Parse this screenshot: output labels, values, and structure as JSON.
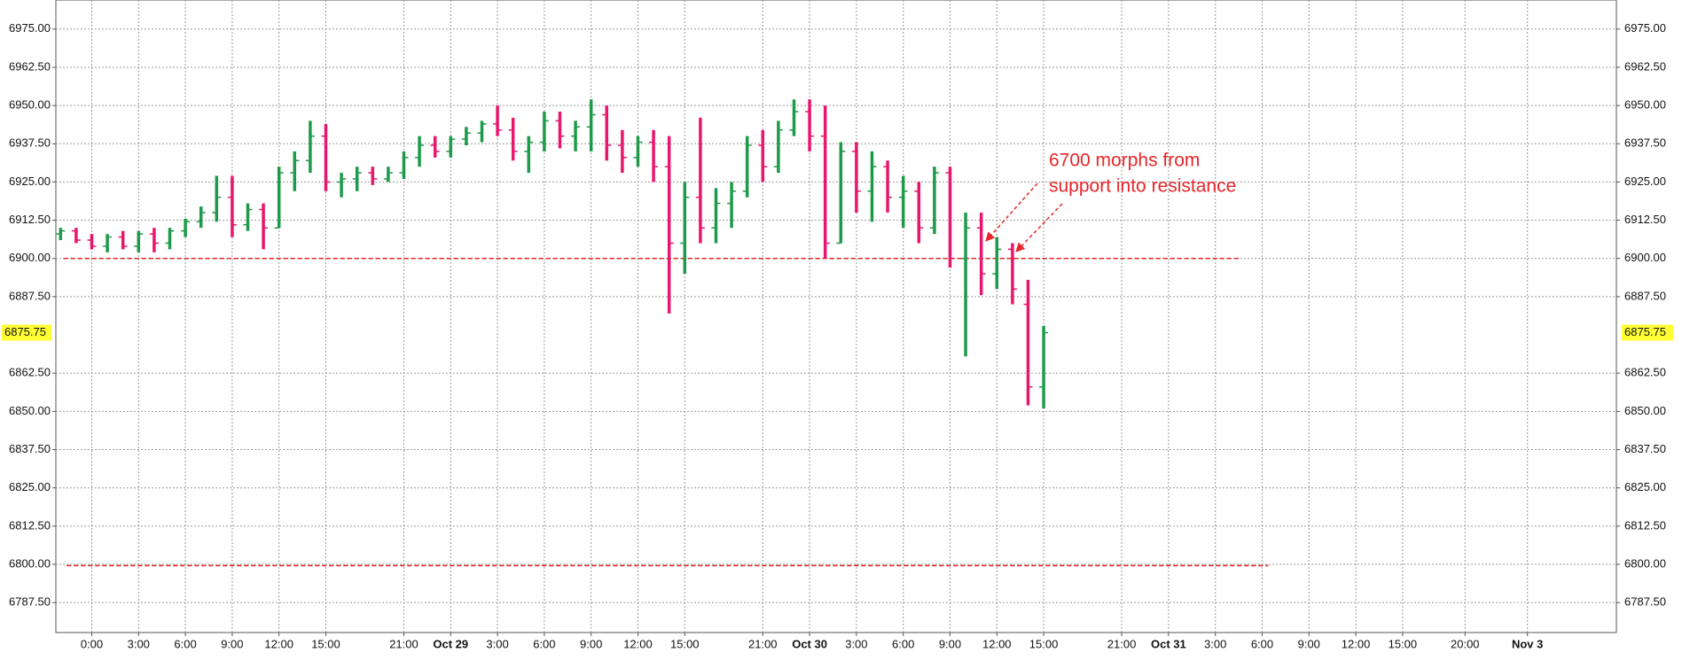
{
  "chart_data": {
    "type": "ohlc",
    "x": [
      -2,
      -1,
      0,
      1,
      2,
      3,
      4,
      5,
      6,
      7,
      8,
      9,
      10,
      11,
      12,
      13,
      14,
      15,
      16,
      17,
      18,
      19,
      20,
      21,
      22,
      23,
      24,
      25,
      26,
      27,
      28,
      29,
      30,
      31,
      32,
      33,
      34,
      35,
      36,
      37,
      38,
      39,
      40,
      41,
      42,
      43,
      44,
      45,
      46,
      47,
      48,
      49,
      50,
      51,
      52,
      53,
      54,
      55,
      56,
      57,
      58,
      59,
      60,
      61
    ],
    "open": [
      6908,
      6909,
      6906,
      6904,
      6907,
      6904,
      6908,
      6905,
      6909,
      6912,
      6915,
      6920,
      6911,
      6916,
      6910,
      6928,
      6932,
      6940,
      6925,
      6926,
      6928,
      6926,
      6928,
      6933,
      6937,
      6935,
      6939,
      6941,
      6944,
      6942,
      6935,
      6938,
      6945,
      6940,
      6943,
      6947,
      6937,
      6933,
      6938,
      6930,
      6905,
      6920,
      6910,
      6918,
      6922,
      6937,
      6930,
      6942,
      6948,
      6940,
      6905,
      6935,
      6922,
      6930,
      6920,
      6922,
      6910,
      6928,
      6900,
      6910,
      6895,
      6903,
      6885,
      6858
    ],
    "high": [
      6910,
      6910,
      6908,
      6908,
      6909,
      6909,
      6910,
      6910,
      6913,
      6917,
      6927,
      6927,
      6918,
      6918,
      6930,
      6935,
      6945,
      6944,
      6928,
      6930,
      6930,
      6930,
      6935,
      6940,
      6940,
      6940,
      6943,
      6945,
      6950,
      6946,
      6940,
      6948,
      6948,
      6945,
      6952,
      6950,
      6942,
      6940,
      6942,
      6940,
      6925,
      6946,
      6923,
      6925,
      6940,
      6942,
      6945,
      6952,
      6952,
      6950,
      6938,
      6938,
      6935,
      6932,
      6927,
      6925,
      6930,
      6930,
      6915,
      6915,
      6907,
      6905,
      6893,
      6878
    ],
    "low": [
      6906,
      6905,
      6903,
      6902,
      6903,
      6902,
      6902,
      6903,
      6907,
      6910,
      6912,
      6907,
      6909,
      6903,
      6910,
      6922,
      6928,
      6922,
      6920,
      6922,
      6924,
      6925,
      6926,
      6930,
      6933,
      6933,
      6937,
      6938,
      6940,
      6932,
      6928,
      6935,
      6936,
      6935,
      6935,
      6932,
      6928,
      6930,
      6925,
      6882,
      6895,
      6905,
      6905,
      6910,
      6920,
      6925,
      6928,
      6940,
      6935,
      6900,
      6905,
      6915,
      6912,
      6915,
      6910,
      6905,
      6908,
      6897,
      6868,
      6888,
      6890,
      6885,
      6852,
      6851
    ],
    "close": [
      6909,
      6906,
      6904,
      6907,
      6904,
      6908,
      6905,
      6909,
      6912,
      6915,
      6920,
      6911,
      6916,
      6910,
      6928,
      6932,
      6940,
      6925,
      6926,
      6928,
      6926,
      6928,
      6933,
      6937,
      6935,
      6939,
      6941,
      6944,
      6942,
      6935,
      6938,
      6945,
      6940,
      6943,
      6947,
      6937,
      6933,
      6938,
      6930,
      6905,
      6920,
      6910,
      6918,
      6922,
      6937,
      6930,
      6942,
      6948,
      6940,
      6905,
      6935,
      6922,
      6930,
      6920,
      6922,
      6910,
      6928,
      6900,
      6910,
      6895,
      6903,
      6890,
      6858,
      6875.75
    ],
    "up_color": "#1e9a4a",
    "down_color": "#e8176d",
    "xlim": [
      -2.3,
      97.7
    ],
    "xticks": [
      {
        "value": 0,
        "label": "0:00"
      },
      {
        "value": 3,
        "label": "3:00"
      },
      {
        "value": 6,
        "label": "6:00"
      },
      {
        "value": 9,
        "label": "9:00"
      },
      {
        "value": 12,
        "label": "12:00"
      },
      {
        "value": 15,
        "label": "15:00"
      },
      {
        "value": 20,
        "label": "21:00"
      },
      {
        "value": 23,
        "label": "Oct 29"
      },
      {
        "value": 26,
        "label": "3:00"
      },
      {
        "value": 29,
        "label": "6:00"
      },
      {
        "value": 32,
        "label": "9:00"
      },
      {
        "value": 35,
        "label": "12:00"
      },
      {
        "value": 38,
        "label": "15:00"
      },
      {
        "value": 43,
        "label": "21:00"
      },
      {
        "value": 46,
        "label": "Oct 30"
      },
      {
        "value": 49,
        "label": "3:00"
      },
      {
        "value": 52,
        "label": "6:00"
      },
      {
        "value": 55,
        "label": "9:00"
      },
      {
        "value": 58,
        "label": "12:00"
      },
      {
        "value": 61,
        "label": "15:00"
      },
      {
        "value": 66,
        "label": "21:00"
      },
      {
        "value": 69,
        "label": "Oct 31"
      },
      {
        "value": 72,
        "label": "3:00"
      },
      {
        "value": 75,
        "label": "6:00"
      },
      {
        "value": 78,
        "label": "9:00"
      },
      {
        "value": 81,
        "label": "12:00"
      },
      {
        "value": 84,
        "label": "15:00"
      },
      {
        "value": 88,
        "label": "20:00"
      },
      {
        "value": 92,
        "label": "Nov 3"
      }
    ],
    "ylim": [
      6777.7,
      6984.5
    ],
    "yticks": [
      {
        "value": 6975,
        "label": "6975.00"
      },
      {
        "value": 6962.5,
        "label": "6962.50"
      },
      {
        "value": 6950,
        "label": "6950.00"
      },
      {
        "value": 6937.5,
        "label": "6937.50"
      },
      {
        "value": 6925,
        "label": "6925.00"
      },
      {
        "value": 6912.5,
        "label": "6912.50"
      },
      {
        "value": 6900,
        "label": "6900.00"
      },
      {
        "value": 6887.5,
        "label": "6887.50"
      },
      {
        "value": 6862.5,
        "label": "6862.50"
      },
      {
        "value": 6850,
        "label": "6850.00"
      },
      {
        "value": 6837.5,
        "label": "6837.50"
      },
      {
        "value": 6825,
        "label": "6825.00"
      },
      {
        "value": 6812.5,
        "label": "6812.50"
      },
      {
        "value": 6800,
        "label": "6800.00"
      },
      {
        "value": 6787.5,
        "label": "6787.50"
      }
    ],
    "grid": true,
    "last_price": {
      "value": 6875.75,
      "label": "6875.75"
    },
    "last_price_color": "#ffff33",
    "hlines": [
      {
        "value": 6900,
        "xrange": [
          -1.8,
          73.5
        ]
      },
      {
        "value": 6799.6,
        "xrange": [
          -1.6,
          75.4
        ]
      }
    ],
    "hline_color": "#e8262a",
    "annotation_lines": [
      "6700 morphs from",
      "support into resistance"
    ]
  }
}
